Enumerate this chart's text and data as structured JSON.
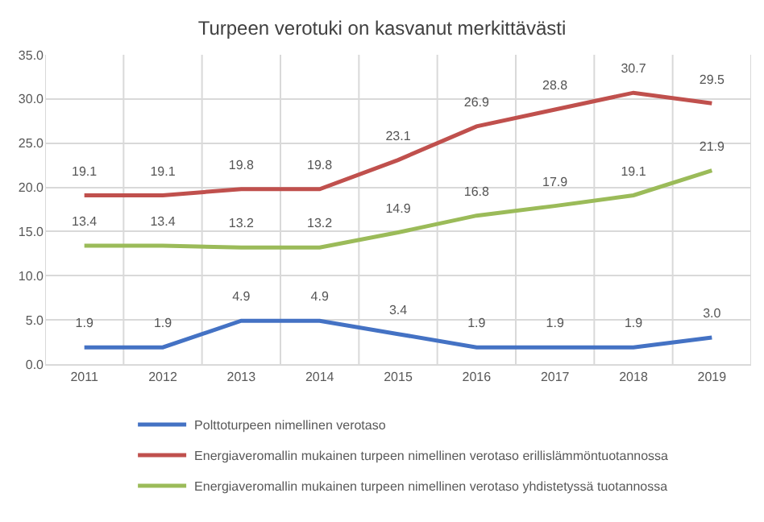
{
  "chart_data": {
    "type": "line",
    "title": "Turpeen verotuki on kasvanut merkittävästi",
    "categories": [
      "2011",
      "2012",
      "2013",
      "2014",
      "2015",
      "2016",
      "2017",
      "2018",
      "2019"
    ],
    "series": [
      {
        "name": "Polttoturpeen nimellinen verotaso",
        "color": "#4472c4",
        "values": [
          1.9,
          1.9,
          4.9,
          4.9,
          3.4,
          1.9,
          1.9,
          1.9,
          3.0
        ],
        "value_labels": [
          "1.9",
          "1.9",
          "4.9",
          "4.9",
          "3.4",
          "1.9",
          "1.9",
          "1.9",
          "3.0"
        ]
      },
      {
        "name": "Energiaveromallin mukainen turpeen nimellinen verotaso erillislämmöntuotannossa",
        "color": "#c0504d",
        "values": [
          19.1,
          19.1,
          19.8,
          19.8,
          23.1,
          26.9,
          28.8,
          30.7,
          29.5
        ],
        "value_labels": [
          "19.1",
          "19.1",
          "19.8",
          "19.8",
          "23.1",
          "26.9",
          "28.8",
          "30.7",
          "29.5"
        ]
      },
      {
        "name": "Energiaveromallin mukainen turpeen nimellinen verotaso yhdistetyssä tuotannossa",
        "color": "#9bbb59",
        "values": [
          13.4,
          13.4,
          13.2,
          13.2,
          14.9,
          16.8,
          17.9,
          19.1,
          21.9
        ],
        "value_labels": [
          "13.4",
          "13.4",
          "13.2",
          "13.2",
          "14.9",
          "16.8",
          "17.9",
          "19.1",
          "21.9"
        ]
      }
    ],
    "ylim": [
      0,
      35
    ],
    "yticks": [
      {
        "value": 0,
        "label": "0.0"
      },
      {
        "value": 5,
        "label": "5.0"
      },
      {
        "value": 10,
        "label": "10.0"
      },
      {
        "value": 15,
        "label": "15.0"
      },
      {
        "value": 20,
        "label": "20.0"
      },
      {
        "value": 25,
        "label": "25.0"
      },
      {
        "value": 30,
        "label": "30.0"
      },
      {
        "value": 35,
        "label": "35.0"
      }
    ],
    "grid": true,
    "legend": "bottom",
    "marker": "none",
    "line_style": "solid"
  }
}
